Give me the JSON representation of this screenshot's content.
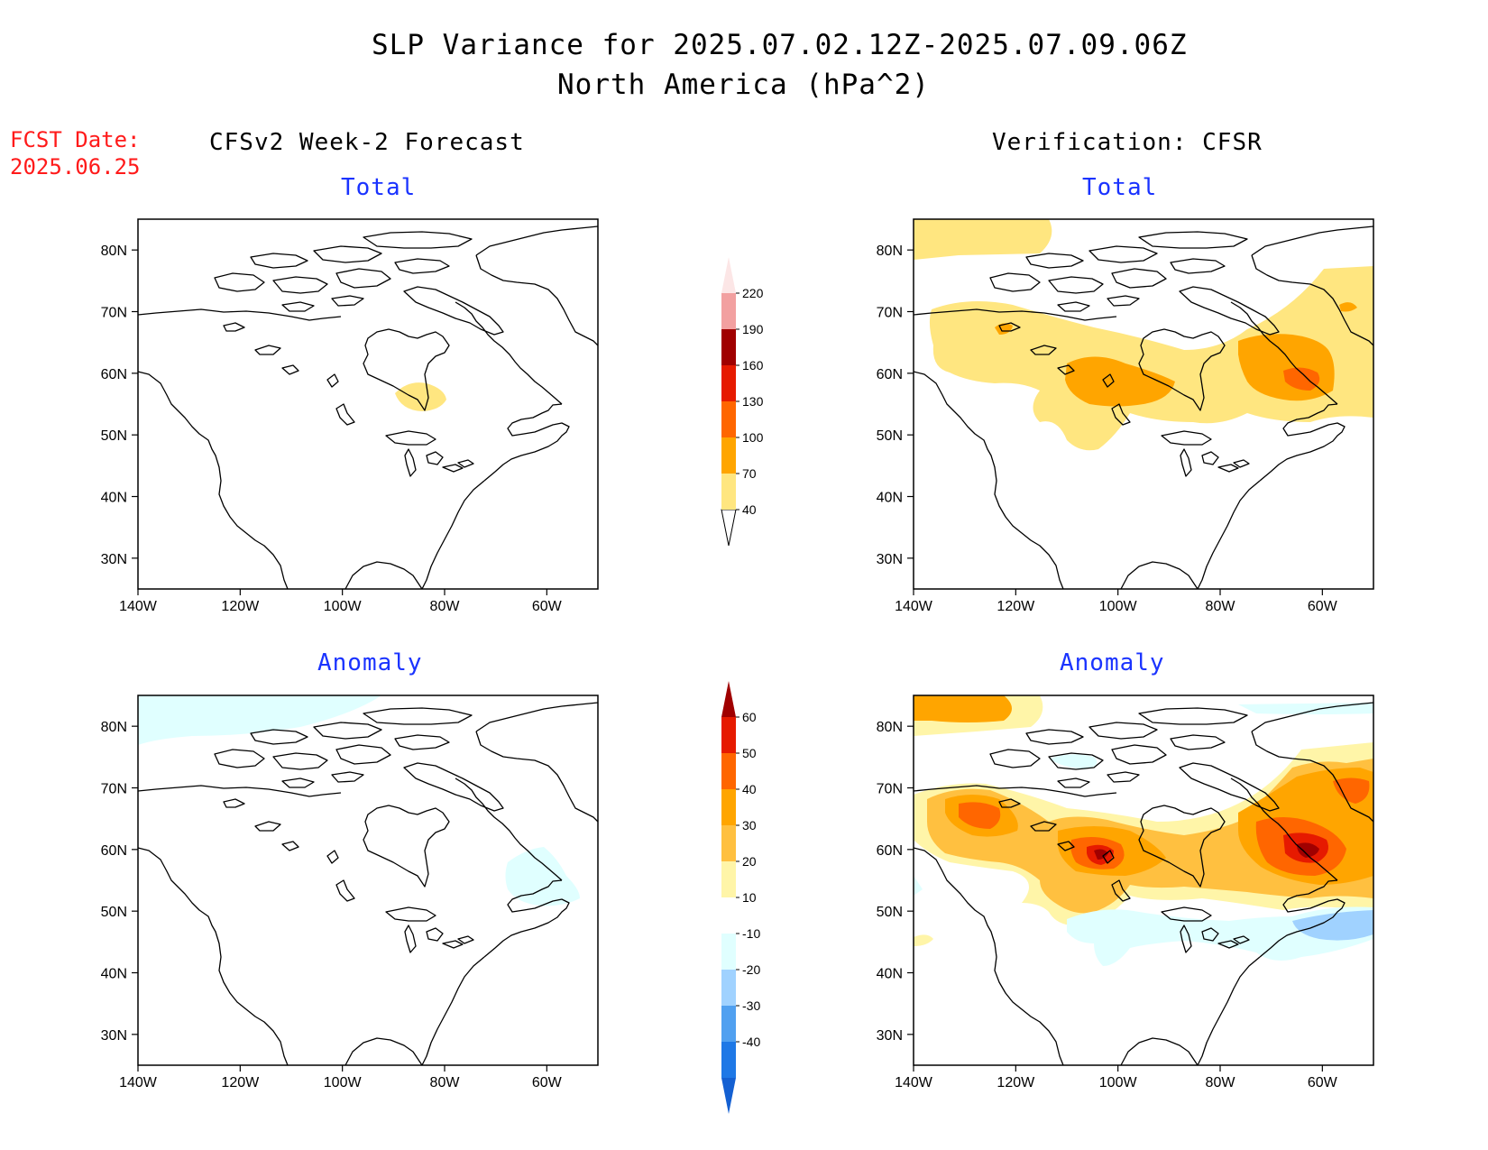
{
  "header": {
    "title": "SLP Variance for 2025.07.02.12Z-2025.07.09.06Z",
    "subtitle": "North America (hPa^2)",
    "fcst_label": "FCST Date:",
    "fcst_date": "2025.06.25"
  },
  "columns": {
    "left": "CFSv2 Week-2 Forecast",
    "right": "Verification: CFSR"
  },
  "panels": {
    "fc_total": "Total",
    "fc_anom": "Anomaly",
    "ver_total": "Total",
    "ver_anom": "Anomaly"
  },
  "axes": {
    "lat_labels": [
      "80N",
      "70N",
      "60N",
      "50N",
      "40N",
      "30N"
    ],
    "lon_labels": [
      "140W",
      "120W",
      "100W",
      "80W",
      "60W"
    ],
    "lat_range": [
      25,
      85
    ],
    "lon_range": [
      -140,
      -50
    ]
  },
  "colorbars": {
    "total": {
      "levels": [
        "40",
        "70",
        "100",
        "130",
        "160",
        "190",
        "220"
      ],
      "colors": [
        "#ffe680",
        "#ffa500",
        "#ff6600",
        "#e61a00",
        "#a00000",
        "#f2a0a0",
        "#fce6e6"
      ]
    },
    "anomaly": {
      "levels": [
        "60",
        "50",
        "40",
        "30",
        "20",
        "10",
        "-10",
        "-20",
        "-30",
        "-40"
      ],
      "colors": [
        "#a00000",
        "#e61a00",
        "#ff6600",
        "#ffa500",
        "#ffc040",
        "#fff5a8",
        "#ffffff",
        "#e0ffff",
        "#a0d2ff",
        "#50a0f0",
        "#1e78e6",
        "#1460d2"
      ]
    }
  }
}
